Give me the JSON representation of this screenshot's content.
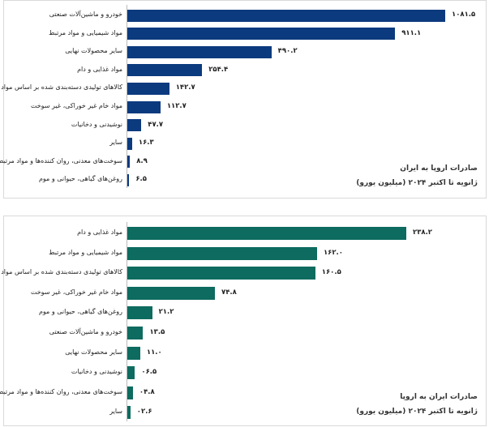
{
  "chart_data": [
    {
      "type": "bar",
      "orientation": "horizontal",
      "title": "صادرات اروپا به ایران",
      "subtitle": "ژانویه تا اکتبر ۲۰۲۴ (میلیون یورو)",
      "color": "#0c3a7e",
      "categories": [
        "خودرو و ماشین‌آلات صنعتی",
        "مواد شیمیایی و مواد مرتبط",
        "سایر محصولات نهایی",
        "مواد غذایی و دام",
        "کالاهای تولیدی دسته‌بندی شده بر اساس مواد",
        "مواد خام غیر خوراکی، غیر سوخت",
        "نوشیدنی و دخانیات",
        "سایر",
        "سوخت‌های معدنی، روان کننده‌ها و مواد مرتبط",
        "روغن‌های گیاهی، حیوانی و موم"
      ],
      "values": [
        1081.5,
        911.1,
        490.2,
        254.4,
        142.7,
        112.7,
        47.7,
        16.3,
        8.9,
        6.5
      ],
      "value_labels": [
        "۱۰۸۱.۵",
        "۹۱۱.۱",
        "۴۹۰.۲",
        "۲۵۴.۴",
        "۱۴۲.۷",
        "۱۱۲.۷",
        "۴۷.۷",
        "۱۶.۳",
        "۸.۹",
        "۶.۵"
      ]
    },
    {
      "type": "bar",
      "orientation": "horizontal",
      "title": "صادرات ایران به اروپا",
      "subtitle": "ژانویه تا اکتبر ۲۰۲۴ (میلیون یورو)",
      "color": "#0d6b5f",
      "categories": [
        "مواد غذایی و دام",
        "مواد شیمیایی و مواد مرتبط",
        "کالاهای تولیدی دسته‌بندی شده بر اساس مواد",
        "مواد خام غیر خوراکی، غیر سوخت",
        "روغن‌های گیاهی، حیوانی و موم",
        "خودرو و ماشین‌آلات صنعتی",
        "سایر محصولات نهایی",
        "نوشیدنی و دخانیات",
        "سوخت‌های معدنی، روان کننده‌ها و مواد مرتبط",
        "سایر"
      ],
      "values": [
        238.2,
        162.0,
        160.5,
        74.8,
        21.2,
        13.5,
        11.0,
        6.5,
        4.8,
        2.6
      ],
      "value_labels": [
        "۲۳۸.۲",
        "۱۶۲.۰",
        "۱۶۰.۵",
        "۷۴.۸",
        "۲۱.۲",
        "۱۳.۵",
        "۱۱.۰",
        "۰۶.۵",
        "۰۴.۸",
        "۰۲.۶"
      ]
    }
  ]
}
